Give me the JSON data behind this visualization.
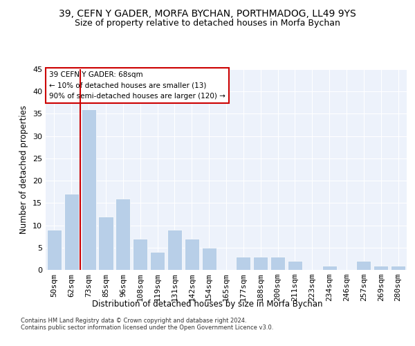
{
  "title": "39, CEFN Y GADER, MORFA BYCHAN, PORTHMADOG, LL49 9YS",
  "subtitle": "Size of property relative to detached houses in Morfa Bychan",
  "xlabel": "Distribution of detached houses by size in Morfa Bychan",
  "ylabel": "Number of detached properties",
  "categories": [
    "50sqm",
    "62sqm",
    "73sqm",
    "85sqm",
    "96sqm",
    "108sqm",
    "119sqm",
    "131sqm",
    "142sqm",
    "154sqm",
    "165sqm",
    "177sqm",
    "188sqm",
    "200sqm",
    "211sqm",
    "223sqm",
    "234sqm",
    "246sqm",
    "257sqm",
    "269sqm",
    "280sqm"
  ],
  "values": [
    9,
    17,
    36,
    12,
    16,
    7,
    4,
    9,
    7,
    5,
    0,
    3,
    3,
    3,
    2,
    0,
    1,
    0,
    2,
    1,
    1
  ],
  "bar_color": "#b8cfe8",
  "vline_color": "#cc0000",
  "vline_x": 1.5,
  "annotation_lines": [
    "39 CEFN Y GADER: 68sqm",
    "← 10% of detached houses are smaller (13)",
    "90% of semi-detached houses are larger (120) →"
  ],
  "annotation_box_color": "#cc0000",
  "ylim": [
    0,
    45
  ],
  "yticks": [
    0,
    5,
    10,
    15,
    20,
    25,
    30,
    35,
    40,
    45
  ],
  "background_color": "#edf2fb",
  "grid_color": "#ffffff",
  "title_fontsize": 10,
  "subtitle_fontsize": 9,
  "xlabel_fontsize": 8.5,
  "ylabel_fontsize": 8.5,
  "footer_line1": "Contains HM Land Registry data © Crown copyright and database right 2024.",
  "footer_line2": "Contains public sector information licensed under the Open Government Licence v3.0."
}
